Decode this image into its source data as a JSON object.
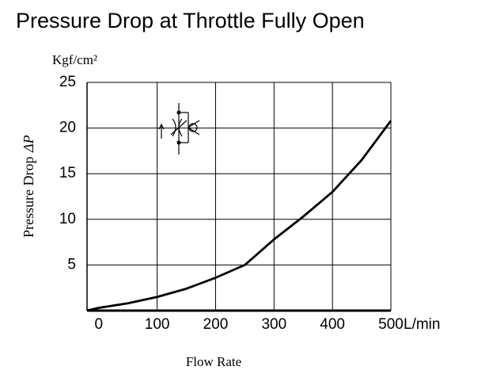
{
  "chart_data": {
    "type": "line",
    "title": "Pressure Drop at Throttle Fully Open",
    "y_unit": "Kgf/cm²",
    "y_label": "Pressure Drop",
    "y_symbol": "ΔP",
    "x_unit": "L/min",
    "x_label": "Flow Rate",
    "x": [
      -20,
      0,
      50,
      100,
      150,
      200,
      250,
      300,
      350,
      400,
      450,
      500
    ],
    "series": [
      {
        "color": "#000000",
        "values": [
          0,
          0.3,
          0.8,
          1.5,
          2.4,
          3.6,
          5.0,
          7.8,
          10.3,
          13.0,
          16.5,
          20.8
        ]
      }
    ],
    "xlim": [
      -20,
      500
    ],
    "xticks": [
      0,
      100,
      200,
      300,
      400,
      500
    ],
    "ylim": [
      0,
      25
    ],
    "yticks": [
      5,
      10,
      15,
      20,
      25
    ],
    "grid": true
  }
}
